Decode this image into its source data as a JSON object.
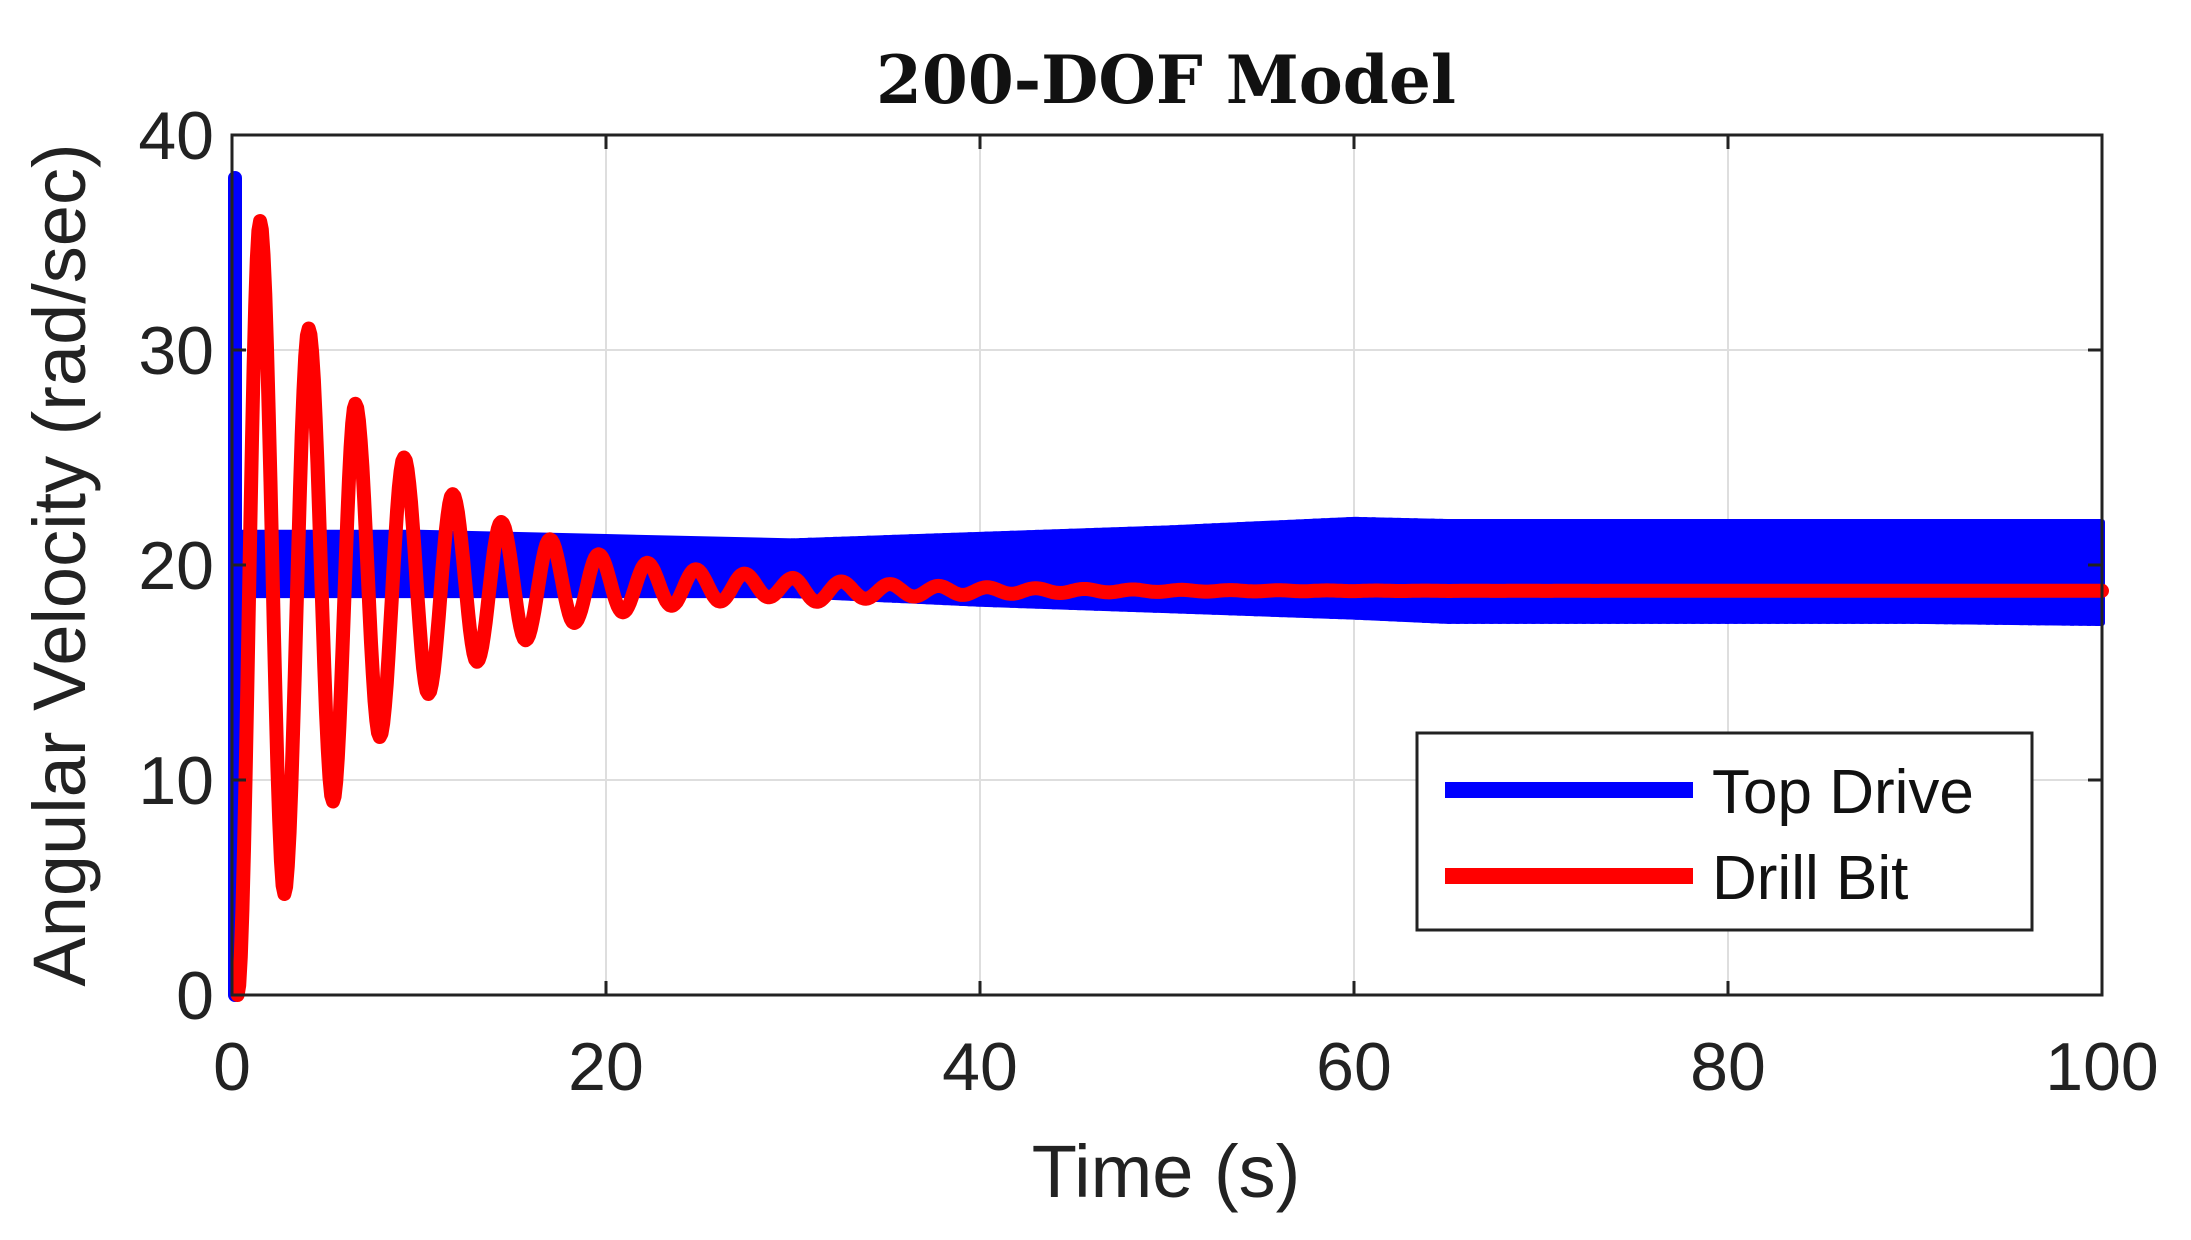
{
  "chart_data": {
    "type": "line",
    "title": "200-DOF Model",
    "xlabel": "Time (s)",
    "ylabel": "Angular Velocity (rad/sec)",
    "xlim": [
      0,
      100
    ],
    "ylim": [
      0,
      40
    ],
    "xticks": [
      0,
      20,
      40,
      60,
      80,
      100
    ],
    "yticks": [
      0,
      10,
      20,
      30,
      40
    ],
    "xtick_labels": [
      "0",
      "20",
      "40",
      "60",
      "80",
      "100"
    ],
    "ytick_labels": [
      "0",
      "10",
      "20",
      "30",
      "40"
    ],
    "grid": true,
    "legend_position": "bottom-right",
    "series": [
      {
        "name": "Top Drive",
        "color": "#0000ff",
        "style": "band",
        "x": [
          0,
          0.3,
          5,
          10,
          20,
          30,
          40,
          50,
          60,
          65,
          70,
          80,
          90,
          100
        ],
        "lower": [
          18.6,
          18.6,
          18.6,
          18.6,
          18.6,
          18.6,
          18.2,
          17.9,
          17.6,
          17.4,
          17.4,
          17.4,
          17.4,
          17.3
        ],
        "upper": [
          21.5,
          21.5,
          21.5,
          21.5,
          21.3,
          21.1,
          21.4,
          21.7,
          22.1,
          22.0,
          22.0,
          22.0,
          22.0,
          22.0
        ],
        "initial_spike": {
          "t": 0,
          "min": 0,
          "max": 38
        }
      },
      {
        "name": "Drill Bit",
        "color": "#ff0000",
        "style": "damped-oscillation",
        "peaks": [
          {
            "t": 0.3,
            "v": 0
          },
          {
            "t": 1.5,
            "v": 36
          },
          {
            "t": 2.8,
            "v": 4.7
          },
          {
            "t": 4.1,
            "v": 31
          },
          {
            "t": 5.4,
            "v": 9
          },
          {
            "t": 6.6,
            "v": 27.5
          },
          {
            "t": 7.9,
            "v": 12
          },
          {
            "t": 9.2,
            "v": 25
          },
          {
            "t": 10.5,
            "v": 14
          },
          {
            "t": 11.8,
            "v": 23.3
          },
          {
            "t": 13.1,
            "v": 15.5
          },
          {
            "t": 14.4,
            "v": 22
          },
          {
            "t": 15.7,
            "v": 16.5
          },
          {
            "t": 17,
            "v": 21.2
          },
          {
            "t": 18.3,
            "v": 17.3
          },
          {
            "t": 19.6,
            "v": 20.5
          },
          {
            "t": 20.9,
            "v": 17.8
          },
          {
            "t": 22.2,
            "v": 20.1
          },
          {
            "t": 23.5,
            "v": 18.1
          },
          {
            "t": 24.8,
            "v": 19.8
          },
          {
            "t": 26.1,
            "v": 18.3
          },
          {
            "t": 27.4,
            "v": 19.6
          },
          {
            "t": 28.7,
            "v": 18.5
          },
          {
            "t": 30,
            "v": 19.4
          }
        ],
        "steady_value": 18.8
      }
    ]
  }
}
